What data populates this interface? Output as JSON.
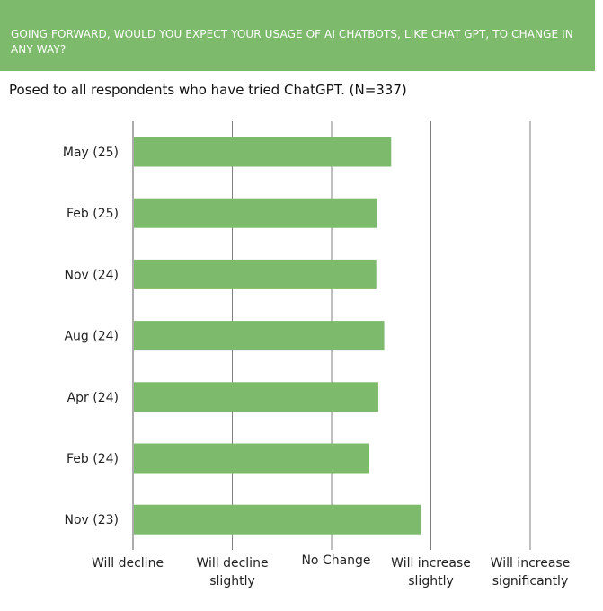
{
  "header": {
    "title": "GOING FORWARD, WOULD YOU EXPECT YOUR USAGE OF AI CHATBOTS, LIKE CHAT GPT, TO CHANGE IN ANY WAY?",
    "subtitle": "Posed to all respondents who have tried ChatGPT. (N=337)"
  },
  "colors": {
    "banner": "#7dba6b",
    "bar": "#7dba6b",
    "gridline": "#7f7f7f"
  },
  "chart_data": {
    "type": "bar",
    "orientation": "horizontal",
    "title": "GOING FORWARD, WOULD YOU EXPECT YOUR USAGE OF AI CHATBOTS, LIKE CHAT GPT, TO CHANGE IN ANY WAY?",
    "subtitle": "Posed to all respondents who have tried ChatGPT. (N=337)",
    "categories": [
      "May (25)",
      "Feb (25)",
      "Nov (24)",
      "Aug (24)",
      "Apr (24)",
      "Feb (24)",
      "Nov (23)"
    ],
    "values": [
      3.6,
      3.46,
      3.45,
      3.53,
      3.47,
      3.38,
      3.9
    ],
    "xlim": [
      1,
      5
    ],
    "x_ticks": [
      {
        "value": 1,
        "label": [
          "Will decline"
        ]
      },
      {
        "value": 2,
        "label": [
          "Will decline",
          "slightly"
        ]
      },
      {
        "value": 3,
        "label": [
          "No Change"
        ]
      },
      {
        "value": 4,
        "label": [
          "Will increase",
          "slightly"
        ]
      },
      {
        "value": 5,
        "label": [
          "Will increase",
          "significantly"
        ]
      }
    ],
    "grid": true,
    "legend": "none"
  }
}
